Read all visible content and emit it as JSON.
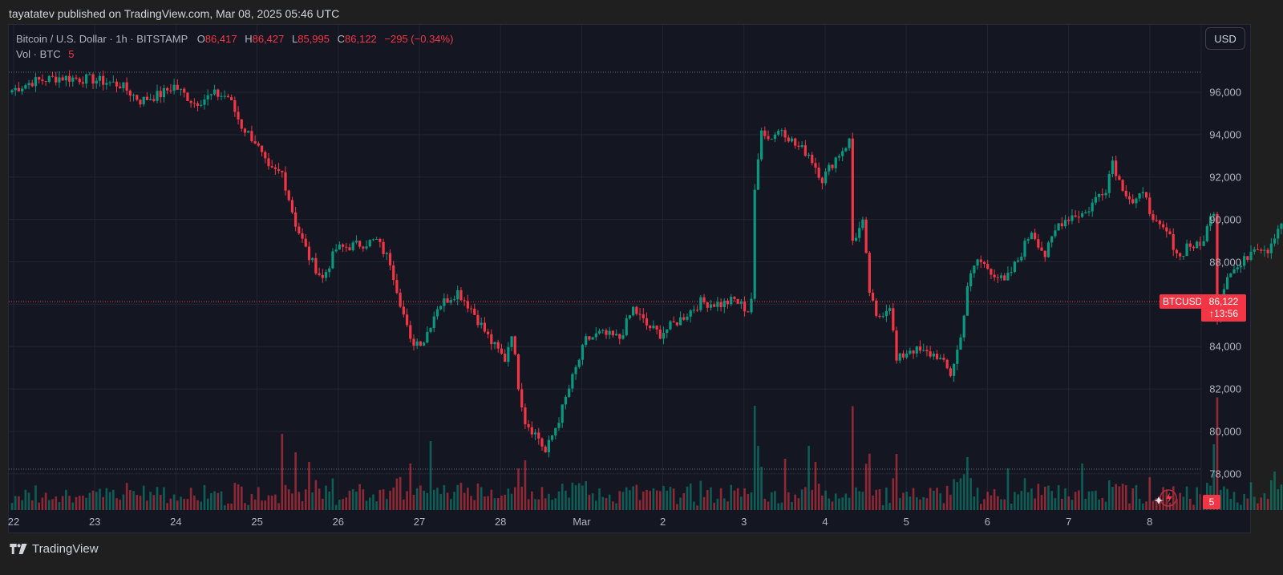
{
  "header": {
    "publish_line": "tayatatev published on TradingView.com, Mar 08, 2025 05:46 UTC"
  },
  "legend": {
    "symbol": "Bitcoin / U.S. Dollar · 1h · BITSTAMP",
    "open_label": "O",
    "open": "86,417",
    "high_label": "H",
    "high": "86,427",
    "low_label": "L",
    "low": "85,995",
    "close_label": "C",
    "close": "86,122",
    "change": "−295 (−0.34%)",
    "vol_label": "Vol · BTC",
    "vol_value": "5"
  },
  "price_scale": {
    "currency_button": "USD",
    "ticks": [
      "96,000",
      "94,000",
      "92,000",
      "90,000",
      "88,000",
      "86,000",
      "84,000",
      "82,000",
      "80,000",
      "78,000"
    ]
  },
  "last_price": {
    "symbol_tag": "BTCUSD",
    "price": "86,122",
    "countdown": "13:56",
    "volume_tag": "5"
  },
  "time_scale": {
    "ticks": [
      "22",
      "23",
      "24",
      "25",
      "26",
      "27",
      "28",
      "Mar",
      "2",
      "3",
      "4",
      "5",
      "6",
      "7",
      "8"
    ]
  },
  "footer": {
    "brand": "TradingView"
  },
  "colors": {
    "up": "#089981",
    "down": "#f23645",
    "background": "#141722",
    "grid": "#222632",
    "text": "#b2b5be"
  },
  "chart_data": {
    "type": "candlestick",
    "title": "Bitcoin / U.S. Dollar · 1h · BITSTAMP",
    "interval": "1h",
    "xlabel": "",
    "ylabel": "USD",
    "ylim": [
      76500,
      98200
    ],
    "x_ticks": [
      "Feb 22",
      "Feb 23",
      "Feb 24",
      "Feb 25",
      "Feb 26",
      "Feb 27",
      "Feb 28",
      "Mar 1",
      "Mar 2",
      "Mar 3",
      "Mar 4",
      "Mar 5",
      "Mar 6",
      "Mar 7",
      "Mar 8"
    ],
    "last": {
      "open": 86417,
      "high": 86427,
      "low": 85995,
      "close": 86122,
      "change": -295,
      "change_pct": -0.34,
      "volume": 5
    },
    "price_path_keypoints": [
      [
        0,
        96100
      ],
      [
        6,
        96500
      ],
      [
        14,
        96700
      ],
      [
        24,
        96600
      ],
      [
        32,
        96350
      ],
      [
        38,
        95600
      ],
      [
        44,
        95900
      ],
      [
        48,
        96300
      ],
      [
        54,
        95500
      ],
      [
        60,
        95900
      ],
      [
        64,
        95800
      ],
      [
        68,
        94400
      ],
      [
        72,
        93700
      ],
      [
        76,
        92300
      ],
      [
        80,
        92200
      ],
      [
        84,
        89800
      ],
      [
        88,
        88200
      ],
      [
        92,
        87200
      ],
      [
        96,
        88600
      ],
      [
        102,
        88800
      ],
      [
        108,
        89000
      ],
      [
        112,
        88000
      ],
      [
        116,
        85500
      ],
      [
        118,
        84200
      ],
      [
        122,
        84300
      ],
      [
        126,
        85900
      ],
      [
        132,
        86600
      ],
      [
        136,
        85800
      ],
      [
        142,
        84200
      ],
      [
        146,
        83400
      ],
      [
        148,
        84700
      ],
      [
        150,
        82200
      ],
      [
        152,
        80500
      ],
      [
        156,
        79700
      ],
      [
        158,
        79000
      ],
      [
        162,
        80600
      ],
      [
        166,
        82500
      ],
      [
        170,
        84300
      ],
      [
        174,
        84600
      ],
      [
        180,
        84400
      ],
      [
        184,
        85800
      ],
      [
        188,
        85000
      ],
      [
        192,
        84600
      ],
      [
        198,
        85300
      ],
      [
        204,
        86100
      ],
      [
        210,
        86000
      ],
      [
        214,
        86200
      ],
      [
        218,
        85700
      ],
      [
        219,
        86300
      ],
      [
        220,
        91200
      ],
      [
        222,
        94400
      ],
      [
        224,
        93800
      ],
      [
        228,
        94300
      ],
      [
        232,
        93500
      ],
      [
        236,
        93100
      ],
      [
        240,
        91900
      ],
      [
        244,
        92900
      ],
      [
        248,
        93700
      ],
      [
        249,
        89000
      ],
      [
        252,
        89800
      ],
      [
        254,
        86600
      ],
      [
        256,
        85300
      ],
      [
        260,
        86000
      ],
      [
        262,
        83300
      ],
      [
        266,
        83900
      ],
      [
        270,
        83700
      ],
      [
        274,
        83600
      ],
      [
        278,
        82700
      ],
      [
        281,
        84400
      ],
      [
        283,
        86900
      ],
      [
        286,
        88100
      ],
      [
        290,
        87600
      ],
      [
        294,
        87000
      ],
      [
        298,
        88100
      ],
      [
        302,
        89500
      ],
      [
        306,
        88300
      ],
      [
        310,
        89800
      ],
      [
        314,
        90200
      ],
      [
        318,
        90300
      ],
      [
        322,
        91200
      ],
      [
        324,
        91500
      ],
      [
        326,
        92800
      ],
      [
        328,
        91800
      ],
      [
        332,
        90800
      ],
      [
        336,
        91200
      ],
      [
        338,
        89800
      ],
      [
        342,
        89400
      ],
      [
        346,
        88200
      ],
      [
        348,
        88800
      ],
      [
        352,
        88700
      ],
      [
        356,
        90500
      ],
      [
        357,
        85400
      ],
      [
        360,
        87500
      ],
      [
        364,
        87800
      ],
      [
        368,
        88800
      ],
      [
        372,
        88600
      ],
      [
        374,
        89300
      ],
      [
        378,
        90500
      ],
      [
        380,
        89000
      ],
      [
        382,
        87500
      ],
      [
        386,
        86300
      ],
      [
        390,
        86400
      ],
      [
        392,
        86122
      ]
    ],
    "volume_spikes": {
      "80": 95,
      "84": 72,
      "88": 60,
      "118": 58,
      "124": 86,
      "150": 52,
      "152": 62,
      "170": 36,
      "220": 130,
      "221": 80,
      "229": 64,
      "236": 80,
      "238": 60,
      "262": 70,
      "283": 66,
      "295": 52,
      "317": 58,
      "356": 82,
      "374": 48
    }
  }
}
